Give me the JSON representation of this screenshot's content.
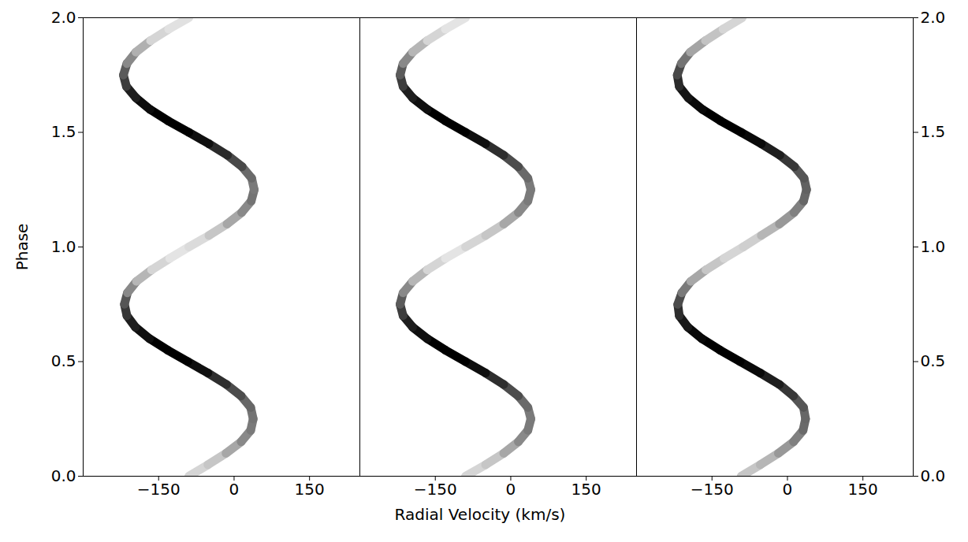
{
  "chart_data": {
    "type": "trail",
    "xlabel": "Radial Velocity (km/s)",
    "ylabel": "Phase",
    "xlim": [
      -300,
      250
    ],
    "xticks": [
      -150,
      0,
      150
    ],
    "ylim": [
      0,
      2
    ],
    "yticks": [
      {
        "value": 0,
        "label": "0.0"
      },
      {
        "value": 0.5,
        "label": "0.5"
      },
      {
        "value": 1,
        "label": "1.0"
      },
      {
        "value": 1.5,
        "label": "1.5"
      },
      {
        "value": 2,
        "label": "2.0"
      }
    ],
    "panels": [
      {
        "phase": [
          0,
          0.05,
          0.1,
          0.15,
          0.2,
          0.25,
          0.3,
          0.35,
          0.4,
          0.45,
          0.5,
          0.55,
          0.6,
          0.65,
          0.7,
          0.75,
          0.8,
          0.85,
          0.9,
          0.95,
          1,
          1.05,
          1.1,
          1.15,
          1.2,
          1.25,
          1.3,
          1.35,
          1.4,
          1.45,
          1.5,
          1.55,
          1.6,
          1.65,
          1.7,
          1.75,
          1.8,
          1.85,
          1.9,
          1.95,
          2
        ],
        "velocity": [
          -90,
          -52,
          -16,
          14,
          33,
          38,
          33,
          14,
          -15,
          -52,
          -92,
          -132,
          -168,
          -196,
          -213,
          -218,
          -212,
          -194,
          -164,
          -128,
          -90,
          -50,
          -14,
          15,
          34,
          40,
          35,
          16,
          -13,
          -50,
          -90,
          -131,
          -167,
          -195,
          -214,
          -220,
          -213,
          -195,
          -166,
          -130,
          -90
        ],
        "intensity": [
          0.3,
          0.35,
          0.45,
          0.55,
          0.6,
          0.62,
          0.66,
          0.75,
          0.85,
          0.95,
          1,
          1,
          0.95,
          0.9,
          0.82,
          0.72,
          0.55,
          0.4,
          0.3,
          0.25,
          0.28,
          0.35,
          0.45,
          0.55,
          0.62,
          0.6,
          0.65,
          0.76,
          0.86,
          0.95,
          1,
          1,
          0.96,
          0.9,
          0.8,
          0.7,
          0.55,
          0.42,
          0.3,
          0.26,
          0.28
        ]
      },
      {
        "phase": [
          0,
          0.05,
          0.1,
          0.15,
          0.2,
          0.25,
          0.3,
          0.35,
          0.4,
          0.45,
          0.5,
          0.55,
          0.6,
          0.65,
          0.7,
          0.75,
          0.8,
          0.85,
          0.9,
          0.95,
          1,
          1.05,
          1.1,
          1.15,
          1.2,
          1.25,
          1.3,
          1.35,
          1.4,
          1.45,
          1.5,
          1.55,
          1.6,
          1.65,
          1.7,
          1.75,
          1.8,
          1.85,
          1.9,
          1.95,
          2
        ],
        "velocity": [
          -90,
          -50,
          -14,
          15,
          34,
          40,
          34,
          15,
          -14,
          -50,
          -90,
          -130,
          -166,
          -195,
          -214,
          -220,
          -214,
          -195,
          -166,
          -130,
          -90,
          -50,
          -14,
          15,
          34,
          40,
          34,
          15,
          -14,
          -50,
          -90,
          -130,
          -166,
          -195,
          -214,
          -220,
          -214,
          -195,
          -166,
          -130,
          -90
        ],
        "intensity": [
          0.3,
          0.35,
          0.45,
          0.55,
          0.6,
          0.6,
          0.65,
          0.75,
          0.85,
          0.95,
          1,
          1,
          0.95,
          0.9,
          0.8,
          0.7,
          0.55,
          0.4,
          0.3,
          0.25,
          0.3,
          0.35,
          0.45,
          0.55,
          0.6,
          0.6,
          0.65,
          0.75,
          0.85,
          0.95,
          1,
          1,
          0.95,
          0.9,
          0.8,
          0.7,
          0.55,
          0.4,
          0.3,
          0.25,
          0.3
        ]
      },
      {
        "phase": [
          0,
          0.05,
          0.1,
          0.15,
          0.2,
          0.25,
          0.3,
          0.35,
          0.4,
          0.45,
          0.5,
          0.55,
          0.6,
          0.65,
          0.7,
          0.75,
          0.8,
          0.85,
          0.9,
          0.95,
          1,
          1.05,
          1.1,
          1.15,
          1.2,
          1.25,
          1.3,
          1.35,
          1.4,
          1.45,
          1.5,
          1.55,
          1.6,
          1.65,
          1.7,
          1.75,
          1.8,
          1.85,
          1.9,
          1.95,
          2
        ],
        "velocity": [
          -92,
          -54,
          -18,
          12,
          31,
          36,
          32,
          12,
          -16,
          -54,
          -94,
          -134,
          -170,
          -198,
          -215,
          -218,
          -210,
          -192,
          -162,
          -126,
          -88,
          -52,
          -16,
          13,
          32,
          38,
          33,
          14,
          -15,
          -52,
          -92,
          -133,
          -169,
          -197,
          -215,
          -219,
          -211,
          -193,
          -163,
          -128,
          -90
        ],
        "intensity": [
          0.35,
          0.4,
          0.5,
          0.58,
          0.65,
          0.66,
          0.72,
          0.82,
          0.9,
          0.97,
          1,
          1,
          0.97,
          0.92,
          0.85,
          0.75,
          0.6,
          0.45,
          0.35,
          0.3,
          0.32,
          0.4,
          0.5,
          0.58,
          0.66,
          0.68,
          0.72,
          0.82,
          0.9,
          0.97,
          1,
          1,
          0.97,
          0.93,
          0.86,
          0.76,
          0.62,
          0.46,
          0.36,
          0.3,
          0.33
        ]
      }
    ]
  }
}
